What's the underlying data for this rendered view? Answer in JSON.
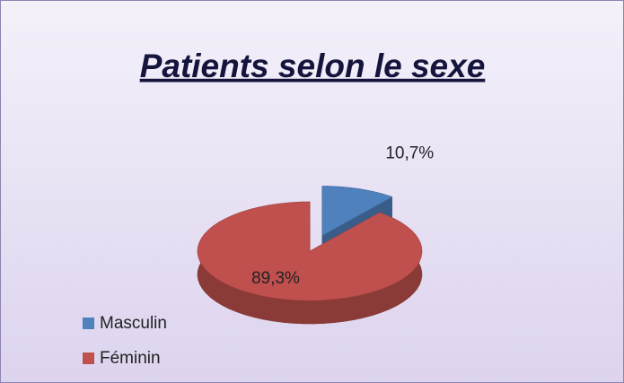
{
  "chart_data": {
    "type": "pie",
    "title": "Patients selon le sexe",
    "categories": [
      "Masculin",
      "Féminin"
    ],
    "values": [
      10.7,
      89.3
    ],
    "value_labels": [
      "10,7%",
      "89,3%"
    ],
    "colors": [
      "#4f81bd",
      "#c0504d"
    ],
    "legend": "bottom-left"
  }
}
